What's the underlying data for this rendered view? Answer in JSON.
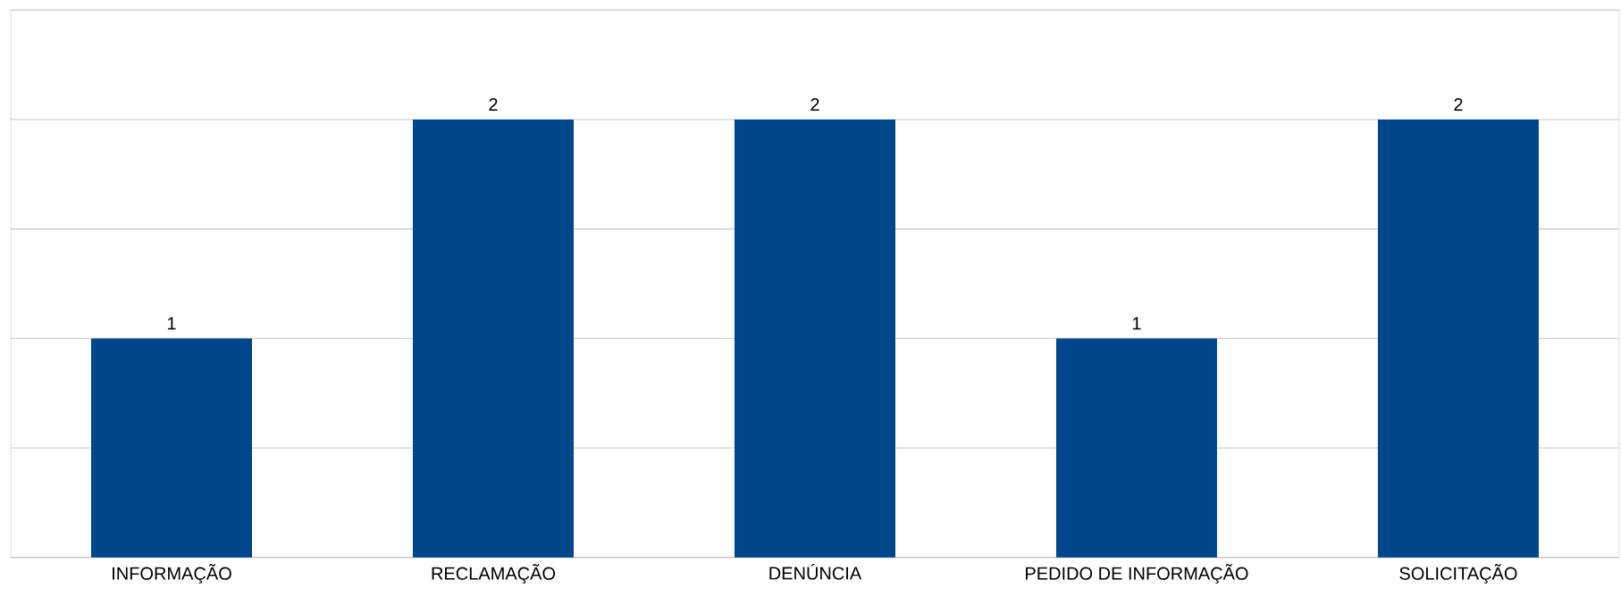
{
  "chart_data": {
    "type": "bar",
    "categories": [
      "INFORMAÇÃO",
      "RECLAMAÇÃO",
      "DENÚNCIA",
      "PEDIDO DE INFORMAÇÃO",
      "SOLICITAÇÃO"
    ],
    "values": [
      1,
      2,
      2,
      1,
      2
    ],
    "color": "#00468b",
    "ylim": [
      0,
      2.5
    ],
    "yticks": [
      {
        "value": 0,
        "label": null
      },
      {
        "value": 0.5,
        "label": null
      },
      {
        "value": 1,
        "label": null
      },
      {
        "value": 1.5,
        "label": null
      },
      {
        "value": 2,
        "label": null
      },
      {
        "value": 2.5,
        "label": null
      }
    ],
    "grid": "y",
    "tick_labels": "x",
    "data_labels": true
  }
}
